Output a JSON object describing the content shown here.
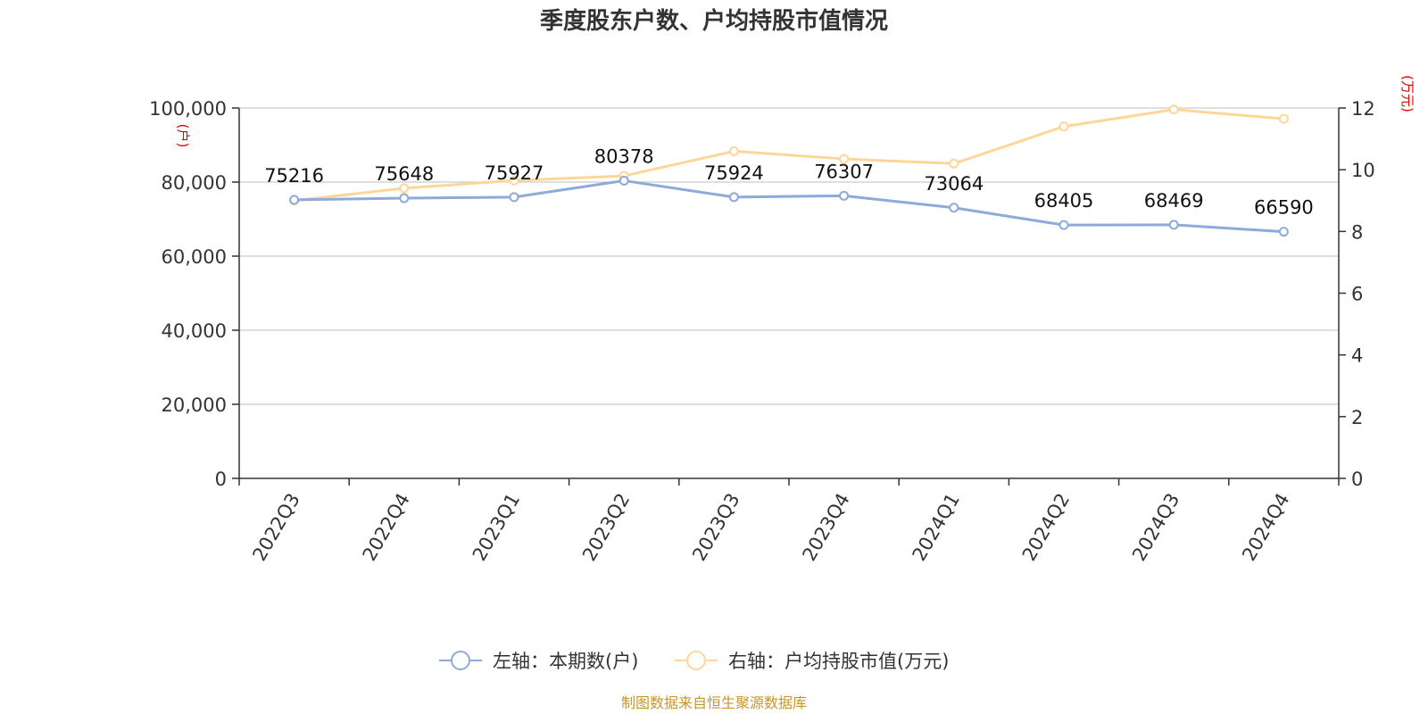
{
  "chart_data": {
    "type": "line",
    "title": "季度股东户数、户均持股市值情况",
    "categories": [
      "2022Q3",
      "2022Q4",
      "2023Q1",
      "2023Q2",
      "2023Q3",
      "2023Q4",
      "2024Q1",
      "2024Q2",
      "2024Q3",
      "2024Q4"
    ],
    "series": [
      {
        "name": "左轴：本期数(户)",
        "axis": "left",
        "color": "#8eaadb",
        "values": [
          75216,
          75648,
          75927,
          80378,
          75924,
          76307,
          73064,
          68405,
          68469,
          66590
        ],
        "data_labels": [
          "75216",
          "75648",
          "75927",
          "80378",
          "75924",
          "76307",
          "73064",
          "68405",
          "68469",
          "66590"
        ]
      },
      {
        "name": "右轴：户均持股市值(万元)",
        "axis": "right",
        "color": "#ffd699",
        "values": [
          9.0,
          9.4,
          9.65,
          9.8,
          10.6,
          10.35,
          10.2,
          11.4,
          11.95,
          11.65
        ]
      }
    ],
    "left_axis": {
      "label": "(户)",
      "ylim": [
        0,
        100000
      ],
      "ticks": [
        0,
        20000,
        40000,
        60000,
        80000,
        100000
      ],
      "tick_labels": [
        "0",
        "20,000",
        "40,000",
        "60,000",
        "80,000",
        "100,000"
      ]
    },
    "right_axis": {
      "label": "(万元)",
      "ylim": [
        0,
        12
      ],
      "ticks": [
        0,
        2,
        4,
        6,
        8,
        10,
        12
      ],
      "tick_labels": [
        "0",
        "2",
        "4",
        "6",
        "8",
        "10",
        "12"
      ]
    },
    "grid": true,
    "legend_position": "bottom-center"
  },
  "source": "制图数据来自恒生聚源数据库"
}
